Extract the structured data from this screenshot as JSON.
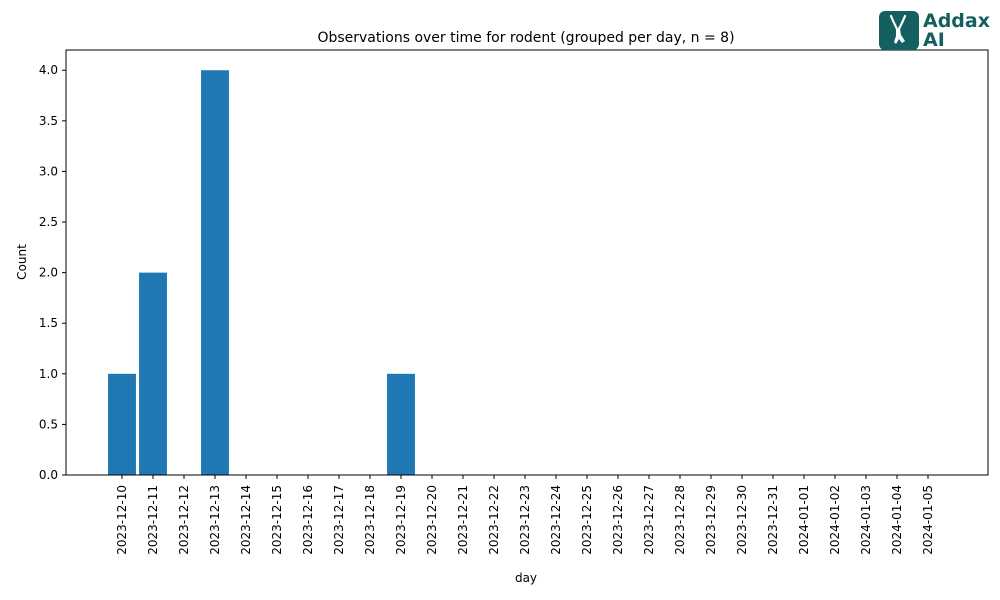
{
  "chart_data": {
    "type": "bar",
    "title": "Observations over time for rodent (grouped per day, n = 8)",
    "xlabel": "day",
    "ylabel": "Count",
    "ylim": [
      0,
      4.2
    ],
    "yticks": [
      0.0,
      0.5,
      1.0,
      1.5,
      2.0,
      2.5,
      3.0,
      3.5,
      4.0
    ],
    "ytick_labels": [
      "0.0",
      "0.5",
      "1.0",
      "1.5",
      "2.0",
      "2.5",
      "3.0",
      "3.5",
      "4.0"
    ],
    "grid": false,
    "bar_color": "#1f77b4",
    "categories": [
      "2023-12-10",
      "2023-12-11",
      "2023-12-12",
      "2023-12-13",
      "2023-12-14",
      "2023-12-15",
      "2023-12-16",
      "2023-12-17",
      "2023-12-18",
      "2023-12-19",
      "2023-12-20",
      "2023-12-21",
      "2023-12-22",
      "2023-12-23",
      "2023-12-24",
      "2023-12-25",
      "2023-12-26",
      "2023-12-27",
      "2023-12-28",
      "2023-12-29",
      "2023-12-30",
      "2023-12-31",
      "2024-01-01",
      "2024-01-02",
      "2024-01-03",
      "2024-01-04",
      "2024-01-05"
    ],
    "values": [
      1,
      2,
      0,
      4,
      0,
      0,
      0,
      0,
      0,
      1,
      0,
      0,
      0,
      0,
      0,
      0,
      0,
      0,
      0,
      0,
      0,
      0,
      0,
      0,
      0,
      0,
      0
    ]
  },
  "logo": {
    "line1": "Addax",
    "line2": "AI",
    "color": "#145f5f"
  }
}
